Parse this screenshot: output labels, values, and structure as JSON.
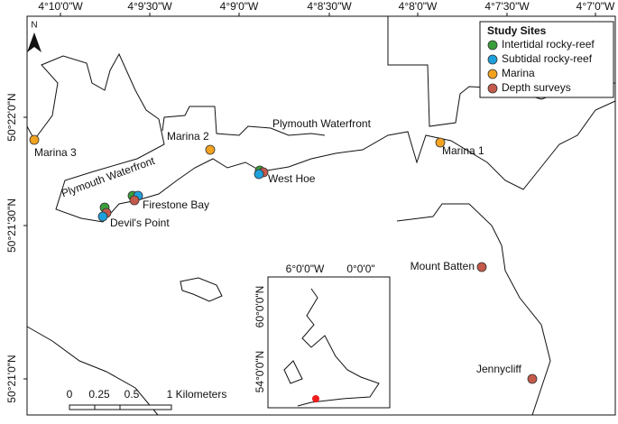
{
  "axes": {
    "top": [
      "4°10'0\"W",
      "4°9'30\"W",
      "4°9'0\"W",
      "4°8'30\"W",
      "4°8'0\"W",
      "4°7'30\"W",
      "4°7'0\"W"
    ],
    "left": [
      "50°22'0\"N",
      "50°21'30\"N",
      "50°21'0\"N"
    ]
  },
  "north": "N",
  "legend": {
    "title": "Study Sites",
    "items": [
      {
        "label": "Intertidal rocky-reef",
        "color": "#3a9e3a"
      },
      {
        "label": "Subtidal rocky-reef",
        "color": "#1ea0dc"
      },
      {
        "label": "Marina",
        "color": "#f2a31f"
      },
      {
        "label": "Depth surveys",
        "color": "#c45a4b"
      }
    ]
  },
  "sites": [
    {
      "label": "Marina 3",
      "markers": [
        2
      ]
    },
    {
      "label": "Marina 2",
      "markers": [
        2
      ]
    },
    {
      "label": "Marina 1",
      "markers": [
        2
      ]
    },
    {
      "label": "West Hoe",
      "markers": [
        0,
        3,
        1
      ]
    },
    {
      "label": "Firestone Bay",
      "markers": [
        0,
        1,
        3
      ]
    },
    {
      "label": "Devil's Point",
      "markers": [
        0,
        3,
        1
      ]
    },
    {
      "label": "Mount Batten",
      "markers": [
        3
      ]
    },
    {
      "label": "Jennycliff",
      "markers": [
        3
      ]
    }
  ],
  "areas": [
    "Plymouth Waterfront",
    "Plymouth Waterfront"
  ],
  "scale": {
    "ticks": [
      "0",
      "0.25",
      "0.5"
    ],
    "unit": "1 Kilometers"
  },
  "inset": {
    "top": [
      "6°0'0\"W",
      "0°0'0\""
    ],
    "left": [
      "60°0'0\"N",
      "54°0'0\"N"
    ],
    "marker_color": "#ee1c1c"
  }
}
